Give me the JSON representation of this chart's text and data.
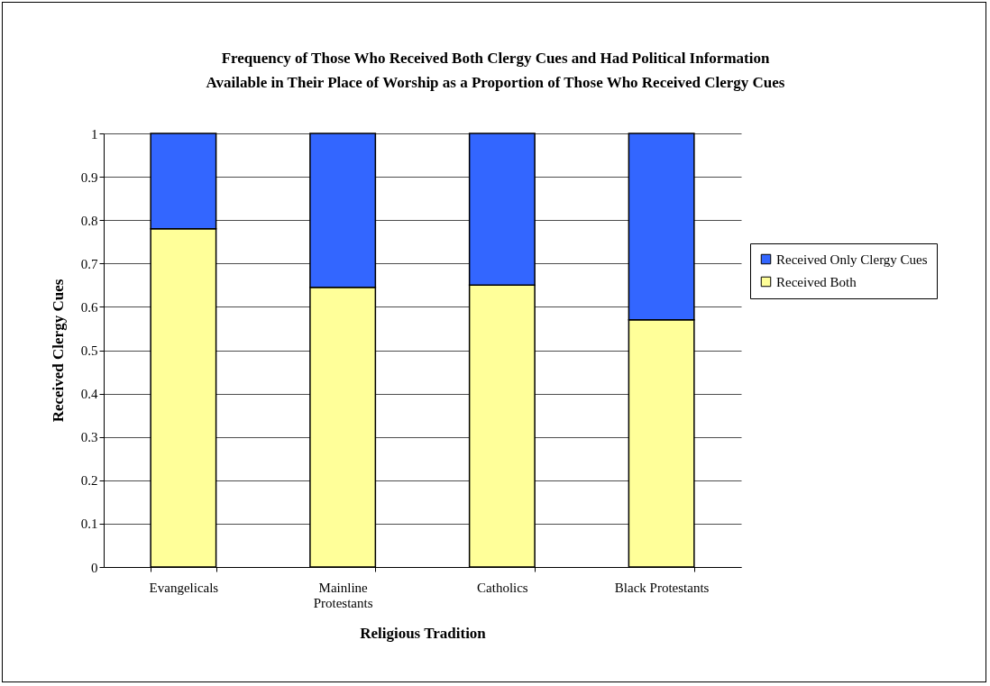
{
  "chart_data": {
    "type": "bar",
    "stacked": true,
    "title": "Frequency of Those Who Received Both Clergy Cues and Had Political Information\nAvailable in Their Place of Worship as a Proportion of Those Who Received Clergy Cues",
    "xlabel": "Religious Tradition",
    "ylabel": "Received Clergy Cues",
    "categories": [
      "Evangelicals",
      "Mainline Protestants",
      "Catholics",
      "Black Protestants"
    ],
    "series": [
      {
        "name": "Received Both",
        "color": "#ffff99",
        "values": [
          0.78,
          0.645,
          0.65,
          0.57
        ]
      },
      {
        "name": "Received Only Clergy Cues",
        "color": "#3366ff",
        "values": [
          0.22,
          0.355,
          0.35,
          0.43
        ]
      }
    ],
    "ylim": [
      0,
      1
    ],
    "yticks": [
      0,
      0.1,
      0.2,
      0.3,
      0.4,
      0.5,
      0.6,
      0.7,
      0.8,
      0.9,
      1
    ],
    "grid": "y",
    "legend": "right"
  }
}
